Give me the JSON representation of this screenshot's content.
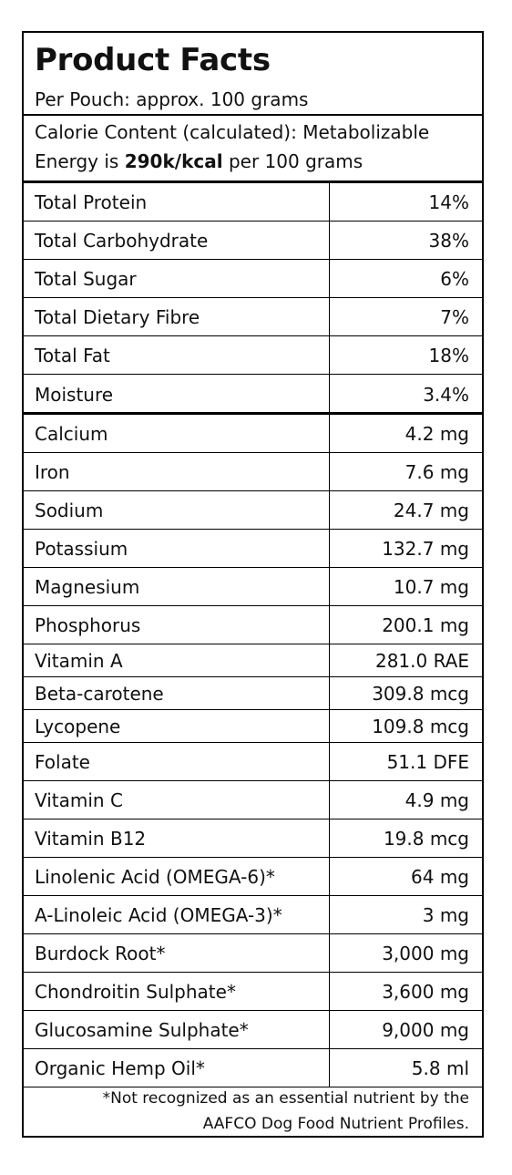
{
  "header": {
    "title": "Product Facts",
    "serving": "Per Pouch: approx. 100 grams"
  },
  "calorie": {
    "line1": "Calorie Content (calculated): Metabolizable",
    "line2_prefix": "Energy is ",
    "line2_bold": "290k/kcal",
    "line2_suffix": " per 100 grams"
  },
  "macros": [
    {
      "name": "Total Protein",
      "value": "14%"
    },
    {
      "name": "Total Carbohydrate",
      "value": "38%"
    },
    {
      "name": "Total Sugar",
      "value": "6%"
    },
    {
      "name": "Total Dietary Fibre",
      "value": "7%"
    },
    {
      "name": "Total Fat",
      "value": "18%"
    },
    {
      "name": "Moisture",
      "value": "3.4%"
    }
  ],
  "nutrients": [
    {
      "name": "Calcium",
      "value": "4.2 mg"
    },
    {
      "name": "Iron",
      "value": "7.6 mg"
    },
    {
      "name": "Sodium",
      "value": "24.7 mg"
    },
    {
      "name": "Potassium",
      "value": "132.7 mg"
    },
    {
      "name": "Magnesium",
      "value": "10.7 mg"
    },
    {
      "name": "Phosphorus",
      "value": "200.1 mg"
    },
    {
      "name": "Vitamin A",
      "value": "281.0 RAE"
    },
    {
      "name": "Beta-carotene",
      "value": "309.8 mcg"
    },
    {
      "name": "Lycopene",
      "value": "109.8 mcg"
    },
    {
      "name": "Folate",
      "value": "51.1 DFE"
    },
    {
      "name": "Vitamin C",
      "value": "4.9 mg"
    },
    {
      "name": "Vitamin B12",
      "value": "19.8 mcg"
    },
    {
      "name": "Linolenic Acid (OMEGA-6)*",
      "value": "64 mg"
    },
    {
      "name": "A-Linoleic Acid (OMEGA-3)*",
      "value": "3 mg"
    },
    {
      "name": "Burdock Root*",
      "value": "3,000 mg"
    },
    {
      "name": "Chondroitin Sulphate*",
      "value": "3,600 mg"
    },
    {
      "name": "Glucosamine Sulphate*",
      "value": "9,000 mg"
    },
    {
      "name": "Organic Hemp Oil*",
      "value": "5.8 ml"
    }
  ],
  "footnote": {
    "line1": "*Not recognized as an essential nutrient by the",
    "line2": "AAFCO Dog Food Nutrient Profiles."
  }
}
